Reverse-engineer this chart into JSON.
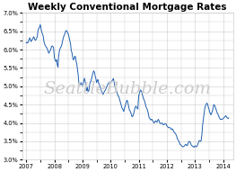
{
  "title": "Weekly Conventional Mortgage Rates",
  "watermark": "SeattleBubble.com",
  "ylim": [
    3.0,
    7.0
  ],
  "yticks": [
    3.0,
    3.5,
    4.0,
    4.5,
    5.0,
    5.5,
    6.0,
    6.5,
    7.0
  ],
  "xlim": [
    2006.85,
    2014.35
  ],
  "xtick_years": [
    2007,
    2008,
    2009,
    2010,
    2011,
    2012,
    2013,
    2014
  ],
  "line_color": "#2060b0",
  "background_color": "#ffffff",
  "grid_color": "#cccccc",
  "title_fontsize": 7.5,
  "tick_fontsize": 4.8,
  "watermark_fontsize": 14,
  "watermark_color": "#cccccc",
  "series": [
    [
      2007.0,
      6.18
    ],
    [
      2007.02,
      6.2
    ],
    [
      2007.05,
      6.18
    ],
    [
      2007.08,
      6.22
    ],
    [
      2007.1,
      6.28
    ],
    [
      2007.13,
      6.32
    ],
    [
      2007.15,
      6.26
    ],
    [
      2007.17,
      6.22
    ],
    [
      2007.2,
      6.25
    ],
    [
      2007.23,
      6.3
    ],
    [
      2007.27,
      6.35
    ],
    [
      2007.3,
      6.28
    ],
    [
      2007.33,
      6.25
    ],
    [
      2007.37,
      6.3
    ],
    [
      2007.4,
      6.38
    ],
    [
      2007.42,
      6.52
    ],
    [
      2007.45,
      6.58
    ],
    [
      2007.48,
      6.62
    ],
    [
      2007.5,
      6.68
    ],
    [
      2007.52,
      6.6
    ],
    [
      2007.55,
      6.48
    ],
    [
      2007.58,
      6.42
    ],
    [
      2007.6,
      6.38
    ],
    [
      2007.63,
      6.22
    ],
    [
      2007.67,
      6.12
    ],
    [
      2007.7,
      6.08
    ],
    [
      2007.73,
      6.05
    ],
    [
      2007.77,
      5.98
    ],
    [
      2007.8,
      5.9
    ],
    [
      2007.83,
      5.94
    ],
    [
      2007.87,
      6.0
    ],
    [
      2007.9,
      6.08
    ],
    [
      2007.93,
      6.1
    ],
    [
      2007.97,
      6.06
    ],
    [
      2008.0,
      5.8
    ],
    [
      2008.03,
      5.7
    ],
    [
      2008.06,
      5.68
    ],
    [
      2008.08,
      5.72
    ],
    [
      2008.1,
      5.6
    ],
    [
      2008.13,
      5.52
    ],
    [
      2008.15,
      5.8
    ],
    [
      2008.18,
      5.96
    ],
    [
      2008.2,
      6.02
    ],
    [
      2008.23,
      6.06
    ],
    [
      2008.25,
      6.09
    ],
    [
      2008.28,
      6.18
    ],
    [
      2008.3,
      6.26
    ],
    [
      2008.33,
      6.35
    ],
    [
      2008.37,
      6.42
    ],
    [
      2008.4,
      6.5
    ],
    [
      2008.43,
      6.52
    ],
    [
      2008.46,
      6.48
    ],
    [
      2008.48,
      6.44
    ],
    [
      2008.5,
      6.42
    ],
    [
      2008.52,
      6.35
    ],
    [
      2008.55,
      6.25
    ],
    [
      2008.58,
      6.14
    ],
    [
      2008.6,
      5.98
    ],
    [
      2008.63,
      5.9
    ],
    [
      2008.65,
      5.8
    ],
    [
      2008.67,
      5.72
    ],
    [
      2008.7,
      5.74
    ],
    [
      2008.73,
      5.82
    ],
    [
      2008.75,
      5.8
    ],
    [
      2008.77,
      5.7
    ],
    [
      2008.8,
      5.6
    ],
    [
      2008.83,
      5.42
    ],
    [
      2008.85,
      5.3
    ],
    [
      2008.87,
      5.1
    ],
    [
      2008.9,
      5.02
    ],
    [
      2008.93,
      5.05
    ],
    [
      2008.95,
      5.1
    ],
    [
      2008.97,
      5.05
    ],
    [
      2009.0,
      5.01
    ],
    [
      2009.03,
      5.1
    ],
    [
      2009.05,
      5.16
    ],
    [
      2009.07,
      5.22
    ],
    [
      2009.1,
      5.12
    ],
    [
      2009.13,
      4.91
    ],
    [
      2009.15,
      4.88
    ],
    [
      2009.17,
      4.98
    ],
    [
      2009.2,
      4.85
    ],
    [
      2009.22,
      4.85
    ],
    [
      2009.25,
      5.0
    ],
    [
      2009.27,
      5.1
    ],
    [
      2009.3,
      5.14
    ],
    [
      2009.33,
      5.22
    ],
    [
      2009.35,
      5.3
    ],
    [
      2009.38,
      5.38
    ],
    [
      2009.4,
      5.42
    ],
    [
      2009.43,
      5.38
    ],
    [
      2009.45,
      5.28
    ],
    [
      2009.48,
      5.2
    ],
    [
      2009.5,
      5.1
    ],
    [
      2009.53,
      5.16
    ],
    [
      2009.55,
      5.18
    ],
    [
      2009.57,
      5.1
    ],
    [
      2009.6,
      5.04
    ],
    [
      2009.63,
      4.98
    ],
    [
      2009.65,
      4.94
    ],
    [
      2009.67,
      4.88
    ],
    [
      2009.7,
      4.82
    ],
    [
      2009.73,
      4.78
    ],
    [
      2009.75,
      4.8
    ],
    [
      2009.77,
      4.84
    ],
    [
      2009.8,
      4.88
    ],
    [
      2009.83,
      4.92
    ],
    [
      2009.85,
      4.96
    ],
    [
      2009.87,
      5.0
    ],
    [
      2009.9,
      5.05
    ],
    [
      2009.93,
      5.09
    ],
    [
      2009.97,
      5.09
    ],
    [
      2010.0,
      5.09
    ],
    [
      2010.03,
      5.12
    ],
    [
      2010.05,
      5.15
    ],
    [
      2010.08,
      5.18
    ],
    [
      2010.1,
      5.21
    ],
    [
      2010.13,
      5.1
    ],
    [
      2010.15,
      5.0
    ],
    [
      2010.17,
      4.95
    ],
    [
      2010.2,
      4.9
    ],
    [
      2010.23,
      4.82
    ],
    [
      2010.25,
      4.78
    ],
    [
      2010.27,
      4.74
    ],
    [
      2010.3,
      4.7
    ],
    [
      2010.33,
      4.62
    ],
    [
      2010.35,
      4.57
    ],
    [
      2010.38,
      4.48
    ],
    [
      2010.4,
      4.42
    ],
    [
      2010.43,
      4.38
    ],
    [
      2010.45,
      4.35
    ],
    [
      2010.47,
      4.32
    ],
    [
      2010.5,
      4.42
    ],
    [
      2010.53,
      4.48
    ],
    [
      2010.55,
      4.55
    ],
    [
      2010.58,
      4.62
    ],
    [
      2010.6,
      4.6
    ],
    [
      2010.63,
      4.5
    ],
    [
      2010.65,
      4.42
    ],
    [
      2010.67,
      4.35
    ],
    [
      2010.7,
      4.32
    ],
    [
      2010.73,
      4.26
    ],
    [
      2010.75,
      4.2
    ],
    [
      2010.77,
      4.17
    ],
    [
      2010.8,
      4.2
    ],
    [
      2010.83,
      4.28
    ],
    [
      2010.85,
      4.35
    ],
    [
      2010.87,
      4.42
    ],
    [
      2010.9,
      4.46
    ],
    [
      2010.93,
      4.42
    ],
    [
      2010.97,
      4.38
    ],
    [
      2011.0,
      4.74
    ],
    [
      2011.03,
      4.82
    ],
    [
      2011.05,
      4.87
    ],
    [
      2011.07,
      4.9
    ],
    [
      2011.1,
      4.86
    ],
    [
      2011.13,
      4.78
    ],
    [
      2011.15,
      4.72
    ],
    [
      2011.17,
      4.66
    ],
    [
      2011.2,
      4.62
    ],
    [
      2011.23,
      4.54
    ],
    [
      2011.25,
      4.48
    ],
    [
      2011.27,
      4.42
    ],
    [
      2011.3,
      4.38
    ],
    [
      2011.33,
      4.3
    ],
    [
      2011.35,
      4.22
    ],
    [
      2011.37,
      4.15
    ],
    [
      2011.4,
      4.12
    ],
    [
      2011.43,
      4.08
    ],
    [
      2011.45,
      4.1
    ],
    [
      2011.47,
      4.1
    ],
    [
      2011.5,
      4.06
    ],
    [
      2011.53,
      4.02
    ],
    [
      2011.55,
      4.0
    ],
    [
      2011.57,
      4.02
    ],
    [
      2011.6,
      4.06
    ],
    [
      2011.63,
      4.04
    ],
    [
      2011.65,
      4.02
    ],
    [
      2011.67,
      4.06
    ],
    [
      2011.7,
      4.1
    ],
    [
      2011.73,
      4.05
    ],
    [
      2011.75,
      4.0
    ],
    [
      2011.77,
      3.98
    ],
    [
      2011.8,
      3.99
    ],
    [
      2011.83,
      4.0
    ],
    [
      2011.85,
      3.98
    ],
    [
      2011.87,
      3.95
    ],
    [
      2011.9,
      3.96
    ],
    [
      2011.93,
      3.98
    ],
    [
      2011.97,
      3.98
    ],
    [
      2012.0,
      3.92
    ],
    [
      2012.03,
      3.9
    ],
    [
      2012.05,
      3.88
    ],
    [
      2012.08,
      3.87
    ],
    [
      2012.1,
      3.88
    ],
    [
      2012.13,
      3.86
    ],
    [
      2012.15,
      3.84
    ],
    [
      2012.17,
      3.82
    ],
    [
      2012.2,
      3.84
    ],
    [
      2012.23,
      3.8
    ],
    [
      2012.25,
      3.76
    ],
    [
      2012.27,
      3.74
    ],
    [
      2012.3,
      3.72
    ],
    [
      2012.33,
      3.68
    ],
    [
      2012.35,
      3.64
    ],
    [
      2012.37,
      3.58
    ],
    [
      2012.4,
      3.54
    ],
    [
      2012.43,
      3.5
    ],
    [
      2012.45,
      3.46
    ],
    [
      2012.47,
      3.42
    ],
    [
      2012.5,
      3.4
    ],
    [
      2012.53,
      3.38
    ],
    [
      2012.55,
      3.36
    ],
    [
      2012.57,
      3.35
    ],
    [
      2012.6,
      3.36
    ],
    [
      2012.63,
      3.38
    ],
    [
      2012.65,
      3.4
    ],
    [
      2012.67,
      3.42
    ],
    [
      2012.7,
      3.4
    ],
    [
      2012.73,
      3.38
    ],
    [
      2012.75,
      3.44
    ],
    [
      2012.77,
      3.48
    ],
    [
      2012.8,
      3.5
    ],
    [
      2012.83,
      3.48
    ],
    [
      2012.85,
      3.44
    ],
    [
      2012.87,
      3.4
    ],
    [
      2012.9,
      3.38
    ],
    [
      2012.93,
      3.36
    ],
    [
      2012.97,
      3.34
    ],
    [
      2013.0,
      3.38
    ],
    [
      2013.03,
      3.36
    ],
    [
      2013.05,
      3.35
    ],
    [
      2013.08,
      3.38
    ],
    [
      2013.1,
      3.42
    ],
    [
      2013.13,
      3.48
    ],
    [
      2013.15,
      3.52
    ],
    [
      2013.17,
      3.52
    ],
    [
      2013.2,
      3.5
    ],
    [
      2013.22,
      3.52
    ],
    [
      2013.25,
      3.7
    ],
    [
      2013.27,
      3.92
    ],
    [
      2013.3,
      4.1
    ],
    [
      2013.33,
      4.28
    ],
    [
      2013.35,
      4.4
    ],
    [
      2013.37,
      4.46
    ],
    [
      2013.4,
      4.51
    ],
    [
      2013.42,
      4.54
    ],
    [
      2013.45,
      4.52
    ],
    [
      2013.47,
      4.45
    ],
    [
      2013.5,
      4.38
    ],
    [
      2013.52,
      4.3
    ],
    [
      2013.55,
      4.26
    ],
    [
      2013.57,
      4.22
    ],
    [
      2013.6,
      4.28
    ],
    [
      2013.63,
      4.35
    ],
    [
      2013.65,
      4.42
    ],
    [
      2013.67,
      4.5
    ],
    [
      2013.7,
      4.48
    ],
    [
      2013.72,
      4.44
    ],
    [
      2013.75,
      4.38
    ],
    [
      2013.77,
      4.32
    ],
    [
      2013.8,
      4.26
    ],
    [
      2013.83,
      4.22
    ],
    [
      2013.85,
      4.18
    ],
    [
      2013.87,
      4.14
    ],
    [
      2013.9,
      4.1
    ],
    [
      2013.93,
      4.1
    ],
    [
      2013.97,
      4.1
    ],
    [
      2014.0,
      4.12
    ],
    [
      2014.03,
      4.14
    ],
    [
      2014.05,
      4.16
    ],
    [
      2014.08,
      4.18
    ],
    [
      2014.1,
      4.2
    ],
    [
      2014.13,
      4.16
    ],
    [
      2014.15,
      4.14
    ],
    [
      2014.18,
      4.12
    ],
    [
      2014.2,
      4.14
    ]
  ]
}
